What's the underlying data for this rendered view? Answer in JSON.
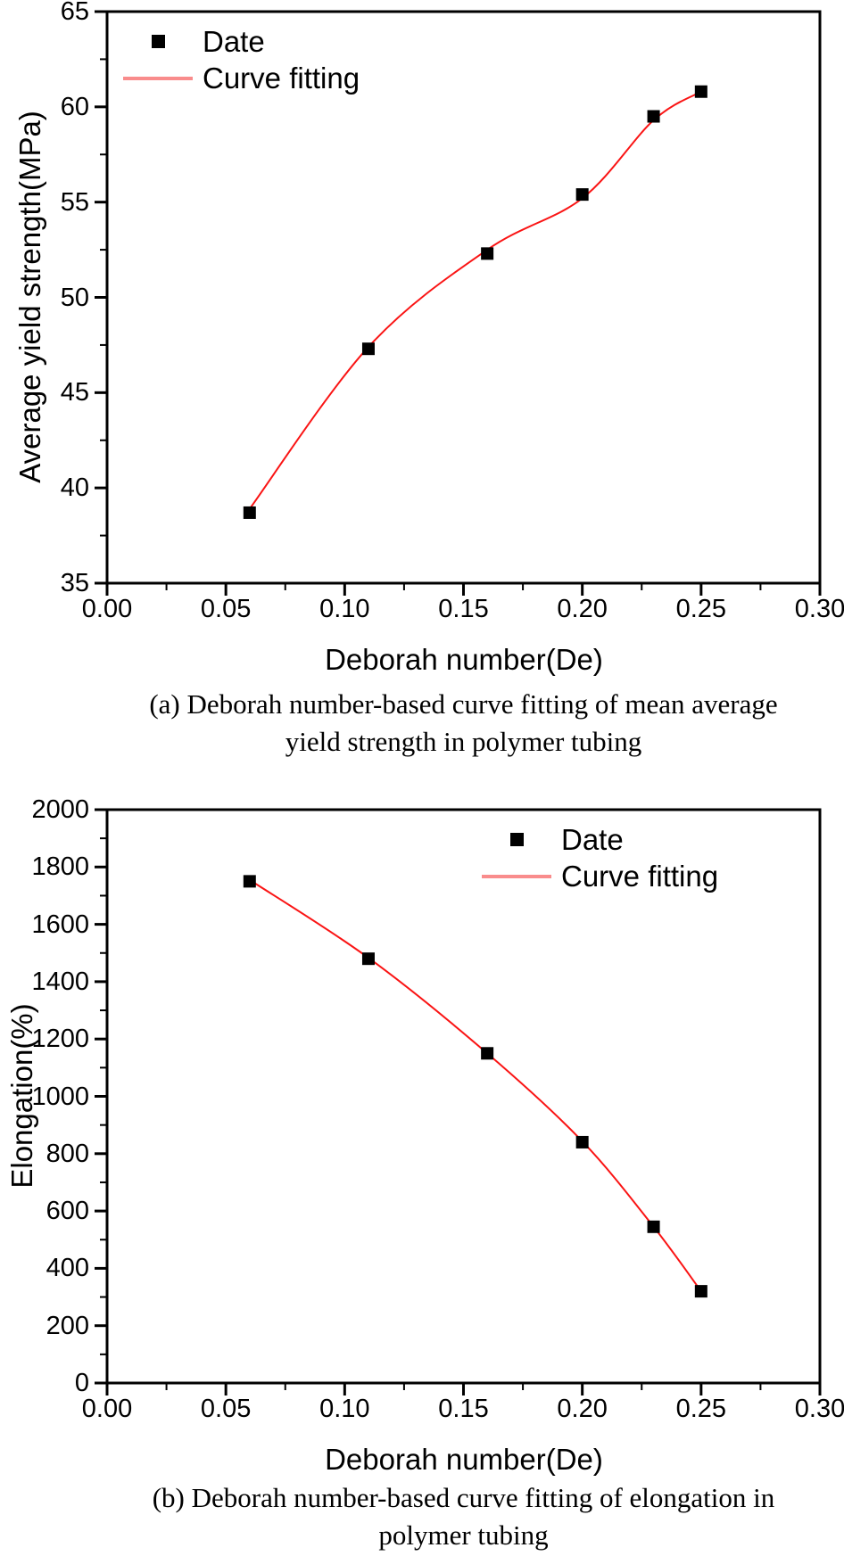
{
  "page": {
    "background": "#ffffff"
  },
  "chart_data": [
    {
      "type": "scatter",
      "subtype": "scatter-with-fitted-curve",
      "title": "",
      "xlabel": "Deborah number(De)",
      "ylabel": "Average yield strength(MPa)",
      "xlim": [
        0.0,
        0.3
      ],
      "ylim": [
        35,
        65
      ],
      "grid": false,
      "legend_position": "top-left-inside",
      "x_tick_values": [
        0.0,
        0.05,
        0.1,
        0.15,
        0.2,
        0.25,
        0.3
      ],
      "x_tick_labels": [
        "0.00",
        "0.05",
        "0.10",
        "0.15",
        "0.20",
        "0.25",
        "0.30"
      ],
      "x_minor_tick_values": [
        0.025,
        0.075,
        0.125,
        0.175,
        0.225,
        0.275
      ],
      "y_tick_values": [
        35,
        40,
        45,
        50,
        55,
        60,
        65
      ],
      "y_tick_labels": [
        "35",
        "40",
        "45",
        "50",
        "55",
        "60",
        "65"
      ],
      "y_minor_tick_values": [
        37.5,
        42.5,
        47.5,
        52.5,
        57.5,
        62.5
      ],
      "series": [
        {
          "name": "Date",
          "type": "scatter",
          "marker": "square",
          "color": "#000000",
          "x": [
            0.06,
            0.11,
            0.16,
            0.2,
            0.23,
            0.25
          ],
          "y": [
            38.7,
            47.3,
            52.3,
            55.4,
            59.5,
            60.8
          ]
        },
        {
          "name": "Curve fitting",
          "type": "line",
          "color": "#fa1414",
          "legend_sample_color": "#f98c8c",
          "x": [
            0.06,
            0.11,
            0.16,
            0.2,
            0.23,
            0.25
          ],
          "y": [
            38.9,
            47.4,
            52.5,
            55.2,
            59.3,
            60.8
          ]
        }
      ],
      "caption_line1": "(a) Deborah number-based curve fitting of mean average",
      "caption_line2": "yield strength in polymer tubing"
    },
    {
      "type": "scatter",
      "subtype": "scatter-with-fitted-curve",
      "title": "",
      "xlabel": "Deborah number(De)",
      "ylabel": "Elongation(%)",
      "xlim": [
        0.0,
        0.3
      ],
      "ylim": [
        0,
        2000
      ],
      "grid": false,
      "legend_position": "top-right-inside",
      "x_tick_values": [
        0.0,
        0.05,
        0.1,
        0.15,
        0.2,
        0.25,
        0.3
      ],
      "x_tick_labels": [
        "0.00",
        "0.05",
        "0.10",
        "0.15",
        "0.20",
        "0.25",
        "0.30"
      ],
      "x_minor_tick_values": [
        0.025,
        0.075,
        0.125,
        0.175,
        0.225,
        0.275
      ],
      "y_tick_values": [
        0,
        200,
        400,
        600,
        800,
        1000,
        1200,
        1400,
        1600,
        1800,
        2000
      ],
      "y_tick_labels": [
        "0",
        "200",
        "400",
        "600",
        "800",
        "1000",
        "1200",
        "1400",
        "1600",
        "1800",
        "2000"
      ],
      "y_minor_tick_values": [
        100,
        300,
        500,
        700,
        900,
        1100,
        1300,
        1500,
        1700,
        1900
      ],
      "series": [
        {
          "name": "Date",
          "type": "scatter",
          "marker": "square",
          "color": "#000000",
          "x": [
            0.06,
            0.11,
            0.16,
            0.2,
            0.23,
            0.25
          ],
          "y": [
            1750,
            1480,
            1150,
            840,
            545,
            320
          ]
        },
        {
          "name": "Curve fitting",
          "type": "line",
          "color": "#fa1414",
          "legend_sample_color": "#f98c8c",
          "x": [
            0.06,
            0.11,
            0.16,
            0.2,
            0.23,
            0.25
          ],
          "y": [
            1755,
            1483,
            1150,
            843,
            545,
            320
          ]
        }
      ],
      "caption_line1": "(b) Deborah number-based curve fitting of elongation in",
      "caption_line2": "polymer tubing"
    }
  ]
}
